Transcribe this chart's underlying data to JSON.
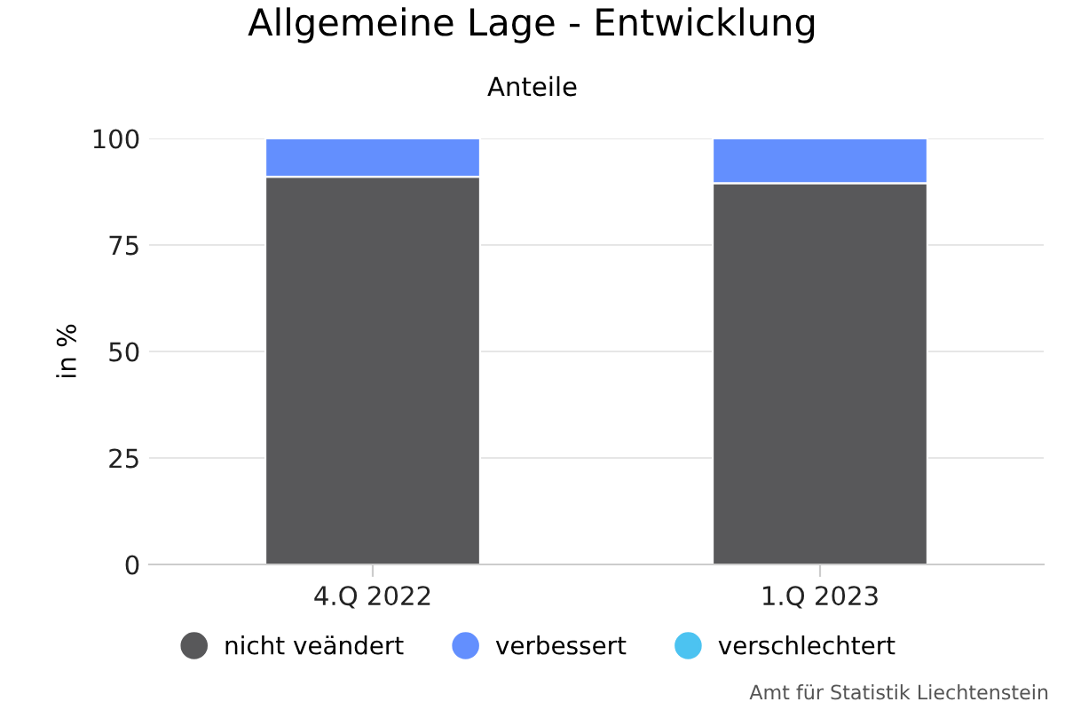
{
  "chart_data": {
    "type": "bar",
    "stacked": true,
    "title": "Allgemeine Lage - Entwicklung",
    "subtitle": "Anteile",
    "ylabel": "in %",
    "categories": [
      "4.Q 2022",
      "1.Q 2023"
    ],
    "series": [
      {
        "name": "nicht veändert",
        "color": "#58585a",
        "values": [
          91,
          89.5
        ]
      },
      {
        "name": "verbessert",
        "color": "#638ffe",
        "values": [
          9,
          10.5
        ]
      },
      {
        "name": "verschlechtert",
        "color": "#4cc3f1",
        "values": [
          null,
          null
        ]
      }
    ],
    "ylim": [
      0,
      100
    ],
    "yticks": [
      0,
      25,
      50,
      75,
      100
    ],
    "grid": "y",
    "legend": "bottom",
    "annotations": [
      "Amt für Statistik Liechtenstein"
    ]
  }
}
